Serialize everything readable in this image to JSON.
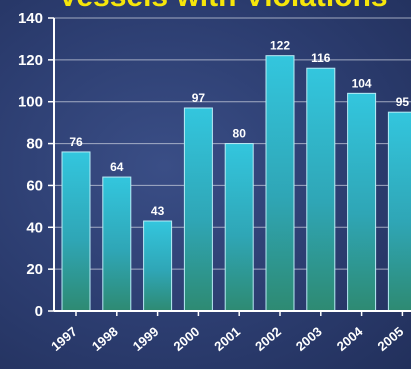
{
  "chart_data": {
    "type": "bar",
    "title": "Vessels with Violations",
    "categories": [
      "1997",
      "1998",
      "1999",
      "2000",
      "2001",
      "2002",
      "2003",
      "2004",
      "2005"
    ],
    "values": [
      76,
      64,
      43,
      97,
      80,
      122,
      116,
      104,
      95
    ],
    "ylim": [
      0,
      140
    ],
    "yticks": [
      0,
      20,
      40,
      60,
      80,
      100,
      120,
      140
    ],
    "grid": true,
    "colors": {
      "bar_top": "#33c6de",
      "bar_bottom": "#2e8a72",
      "bar_edge": "#b9ecf6",
      "grid": "#c9cfdd",
      "title": "#f6e60a",
      "text": "#ffffff"
    }
  }
}
